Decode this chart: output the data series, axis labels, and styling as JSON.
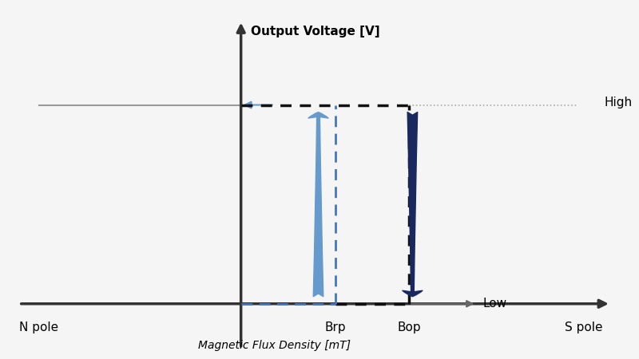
{
  "fig_width": 8.0,
  "fig_height": 4.5,
  "dpi": 100,
  "bg_color": "#f5f5f5",
  "x_min": -3.5,
  "x_max": 5.5,
  "y_min": -2.0,
  "y_max": 5.0,
  "y_axis_x": 0.0,
  "x_axis_y": -1.0,
  "Brp_x": 1.4,
  "Bop_x": 2.5,
  "High_y": 3.0,
  "Low_y": -1.0,
  "label_N_pole": "N pole",
  "label_S_pole": "S pole",
  "label_Brp": "Brp",
  "label_Bop": "Bop",
  "label_High": "High",
  "label_Low": "Low",
  "label_xaxis": "Magnetic Flux Density [mT]",
  "label_yaxis": "Output Voltage [V]",
  "gray_line_color": "#999999",
  "dotted_black_color": "#111111",
  "dotted_blue_color": "#4477bb",
  "light_blue_color": "#6699cc",
  "dark_blue_color": "#1a2860",
  "low_arrow_color": "#666666"
}
